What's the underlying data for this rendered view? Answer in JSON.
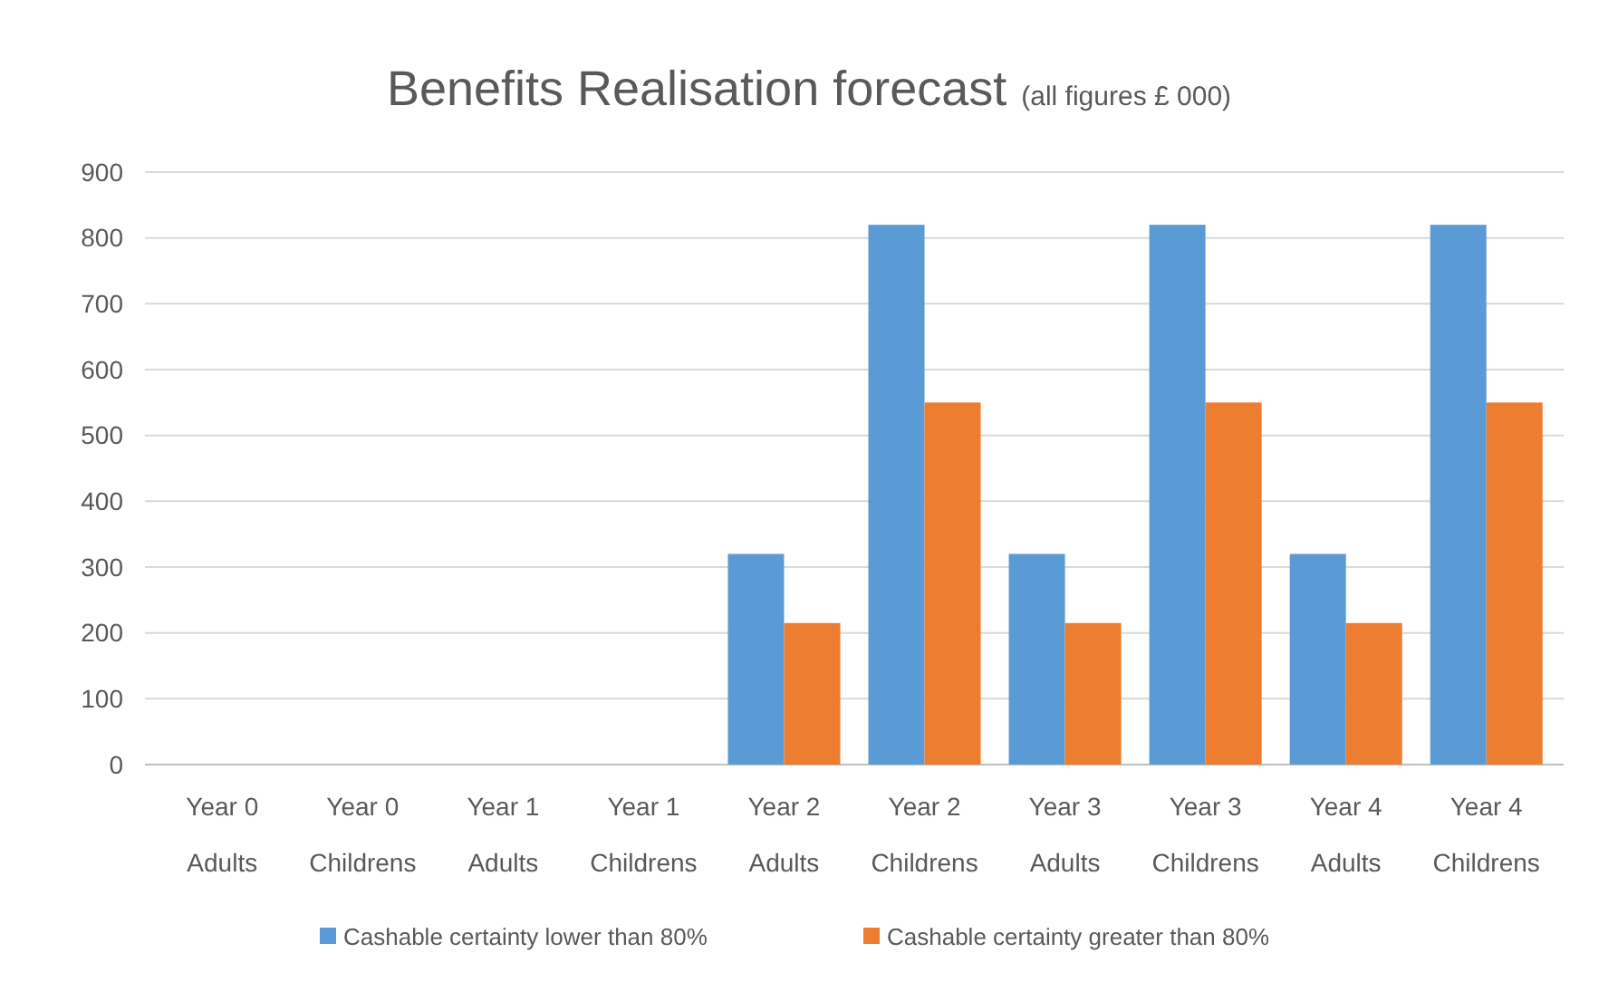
{
  "chart_data": {
    "type": "bar",
    "title": "Benefits Realisation forecast",
    "subtitle": "(all figures £ 000)",
    "categories": [
      "Year 0\nAdults",
      "Year 0\nChildrens",
      "Year 1\nAdults",
      "Year 1\nChildrens",
      "Year 2\nAdults",
      "Year 2\nChildrens",
      "Year 3\nAdults",
      "Year 3\nChildrens",
      "Year 4\nAdults",
      "Year 4\nChildrens"
    ],
    "series": [
      {
        "name": "Cashable certainty lower than 80%",
        "color": "#5b9bd5",
        "values": [
          0,
          0,
          0,
          0,
          320,
          820,
          320,
          820,
          320,
          820
        ]
      },
      {
        "name": "Cashable certainty greater than 80%",
        "color": "#ed7d31",
        "values": [
          0,
          0,
          0,
          0,
          215,
          550,
          215,
          550,
          215,
          550
        ]
      }
    ],
    "ylim": [
      0,
      900
    ],
    "yticks": [
      0,
      100,
      200,
      300,
      400,
      500,
      600,
      700,
      800,
      900
    ],
    "grid": "y",
    "legend": "bottom"
  }
}
